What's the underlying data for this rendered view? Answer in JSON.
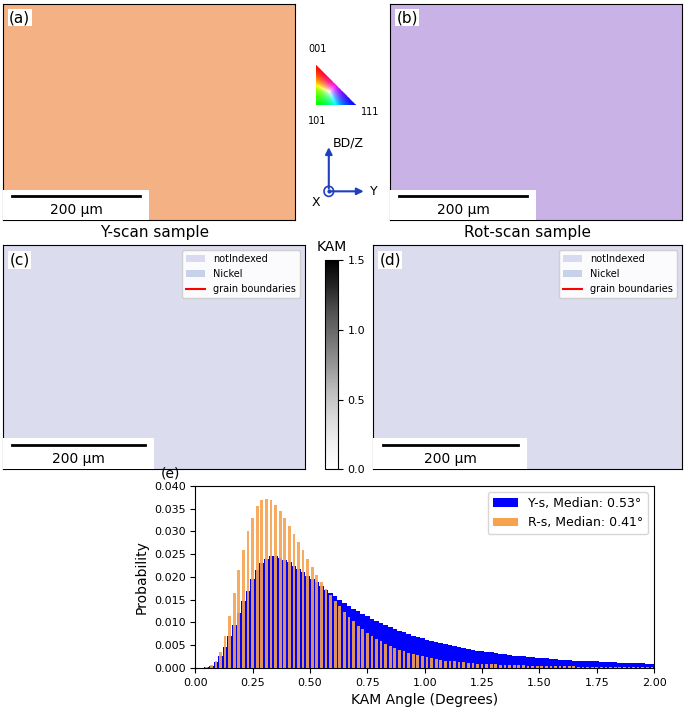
{
  "chart_data": {
    "type": "histogram",
    "annotations": [
      "(e)"
    ],
    "x_label": "KAM Angle (Degrees)",
    "y_label": "Probability",
    "bins": [
      0,
      0.02,
      0.04,
      0.06,
      0.08,
      0.1,
      0.12,
      0.14,
      0.16,
      0.18,
      0.2,
      0.22,
      0.24,
      0.26,
      0.28,
      0.3,
      0.32,
      0.34,
      0.36,
      0.38,
      0.4,
      0.42,
      0.44,
      0.46,
      0.48,
      0.5,
      0.52,
      0.54,
      0.56,
      0.58,
      0.6,
      0.62,
      0.64,
      0.66,
      0.68,
      0.7,
      0.72,
      0.74,
      0.76,
      0.78,
      0.8,
      0.82,
      0.84,
      0.86,
      0.88,
      0.9,
      0.92,
      0.94,
      0.96,
      0.98,
      1.0,
      1.02,
      1.04,
      1.06,
      1.08,
      1.1,
      1.12,
      1.14,
      1.16,
      1.18,
      1.2,
      1.22,
      1.24,
      1.26,
      1.28,
      1.3,
      1.32,
      1.34,
      1.36,
      1.38,
      1.4,
      1.42,
      1.44,
      1.46,
      1.48,
      1.5,
      1.52,
      1.54,
      1.56,
      1.58,
      1.6,
      1.62,
      1.64,
      1.66,
      1.68,
      1.7,
      1.72,
      1.74,
      1.76,
      1.78,
      1.8,
      1.82,
      1.84,
      1.86,
      1.88,
      1.9,
      1.92,
      1.94,
      1.96,
      1.98,
      2.0
    ],
    "series": [
      {
        "name": "Y-s, Median: 0.53°",
        "color": "#0000ff",
        "values": [
          0,
          0,
          0.0002,
          0.0005,
          0.0012,
          0.0025,
          0.0045,
          0.007,
          0.0095,
          0.012,
          0.0148,
          0.017,
          0.0195,
          0.0215,
          0.023,
          0.024,
          0.0245,
          0.0245,
          0.0242,
          0.0237,
          0.0232,
          0.0225,
          0.0218,
          0.021,
          0.0203,
          0.0196,
          0.0188,
          0.018,
          0.0172,
          0.0165,
          0.0158,
          0.015,
          0.0143,
          0.0137,
          0.013,
          0.0124,
          0.0118,
          0.0113,
          0.0108,
          0.0103,
          0.0098,
          0.0094,
          0.009,
          0.0086,
          0.0082,
          0.0078,
          0.0075,
          0.0071,
          0.0068,
          0.0065,
          0.0062,
          0.006,
          0.0057,
          0.0054,
          0.0052,
          0.005,
          0.0048,
          0.0046,
          0.0044,
          0.0042,
          0.004,
          0.0038,
          0.0037,
          0.0035,
          0.0034,
          0.0032,
          0.0031,
          0.003,
          0.0029,
          0.0027,
          0.0026,
          0.0025,
          0.0024,
          0.0023,
          0.0022,
          0.0021,
          0.0021,
          0.002,
          0.0019,
          0.0018,
          0.0018,
          0.0017,
          0.0016,
          0.0016,
          0.0015,
          0.0015,
          0.0014,
          0.0014,
          0.0013,
          0.0013,
          0.0012,
          0.0012,
          0.0011,
          0.0011,
          0.0011,
          0.001,
          0.001,
          0.001,
          0.0009,
          0.0009
        ]
      },
      {
        "name": "R-s, Median: 0.41°",
        "color": "#f7a24f",
        "values": [
          0,
          0,
          0.0002,
          0.0006,
          0.0015,
          0.0035,
          0.007,
          0.0115,
          0.0165,
          0.0215,
          0.026,
          0.03,
          0.033,
          0.0355,
          0.0368,
          0.0372,
          0.0368,
          0.0358,
          0.0345,
          0.033,
          0.0312,
          0.0295,
          0.0276,
          0.0258,
          0.024,
          0.0222,
          0.0205,
          0.0189,
          0.0174,
          0.016,
          0.0147,
          0.0135,
          0.0123,
          0.0112,
          0.0102,
          0.0093,
          0.0085,
          0.0077,
          0.007,
          0.0064,
          0.0058,
          0.0053,
          0.0048,
          0.0044,
          0.004,
          0.0036,
          0.0033,
          0.003,
          0.0028,
          0.0025,
          0.0023,
          0.0021,
          0.0019,
          0.0018,
          0.0016,
          0.0015,
          0.0014,
          0.0013,
          0.0012,
          0.0011,
          0.001,
          0.00095,
          0.0009,
          0.00085,
          0.0008,
          0.00075,
          0.0007,
          0.00065,
          0.0006,
          0.00058,
          0.00055,
          0.00052,
          0.0005,
          0.00047,
          0.00045,
          0.00042,
          0.0004,
          0.00038,
          0.00036,
          0.00035,
          0.00033,
          0.00032,
          0.0003,
          0.00029,
          0.00028,
          0.00027,
          0.00026,
          0.00025,
          0.00024,
          0.00023,
          0.00022,
          0.00021,
          0.0002,
          0.0002,
          0.00019,
          0.00018,
          0.00018,
          0.00017,
          0.00016,
          0.00015
        ]
      }
    ],
    "xlim": [
      0,
      2.0
    ],
    "xticks": [
      {
        "value": 0,
        "label": "0.00"
      },
      {
        "value": 0.25,
        "label": "0.25"
      },
      {
        "value": 0.5,
        "label": "0.50"
      },
      {
        "value": 0.75,
        "label": "0.75"
      },
      {
        "value": 1.0,
        "label": "1.00"
      },
      {
        "value": 1.25,
        "label": "1.25"
      },
      {
        "value": 1.5,
        "label": "1.50"
      },
      {
        "value": 1.75,
        "label": "1.75"
      },
      {
        "value": 2.0,
        "label": "2.00"
      }
    ],
    "ylim": [
      0,
      0.04
    ],
    "yticks": [
      {
        "value": 0,
        "label": "0.000"
      },
      {
        "value": 0.005,
        "label": "0.005"
      },
      {
        "value": 0.01,
        "label": "0.010"
      },
      {
        "value": 0.015,
        "label": "0.015"
      },
      {
        "value": 0.02,
        "label": "0.020"
      },
      {
        "value": 0.025,
        "label": "0.025"
      },
      {
        "value": 0.03,
        "label": "0.030"
      },
      {
        "value": 0.035,
        "label": "0.035"
      },
      {
        "value": 0.04,
        "label": "0.040"
      }
    ],
    "legend": "upper right"
  },
  "figure": {
    "maps": [
      {
        "label": "(a)",
        "scale_bar": "200 µm",
        "color": "#f4b183"
      },
      {
        "label": "(b)",
        "scale_bar": "200 µm",
        "color": "#c9b3e6"
      },
      {
        "label": "(c)",
        "scale_bar": "200 µm",
        "color": "#dcdcef"
      },
      {
        "label": "(d)",
        "scale_bar": "200 µm",
        "color": "#dcdcef"
      }
    ],
    "ipf_legend": {
      "corners": [
        "001",
        "101",
        "111"
      ]
    },
    "axes_triad": {
      "up": "BD/Z",
      "out": "X",
      "right": "Y"
    },
    "map_titles": [
      "Y-scan sample",
      "Rot-scan sample"
    ],
    "map_legend": [
      {
        "name": "notIndexed",
        "color": "#d9d9f0"
      },
      {
        "name": "Nickel",
        "color": "#c6d2ea"
      },
      {
        "name": "grain boundaries",
        "color": "#ff0000"
      }
    ],
    "kam_colorbar": {
      "label": "KAM",
      "lim": [
        0.0,
        1.5
      ],
      "ticks": [
        {
          "value": 0.0,
          "label": "0.0"
        },
        {
          "value": 0.5,
          "label": "0.5"
        },
        {
          "value": 1.0,
          "label": "1.0"
        },
        {
          "value": 1.5,
          "label": "1.5"
        }
      ]
    }
  }
}
